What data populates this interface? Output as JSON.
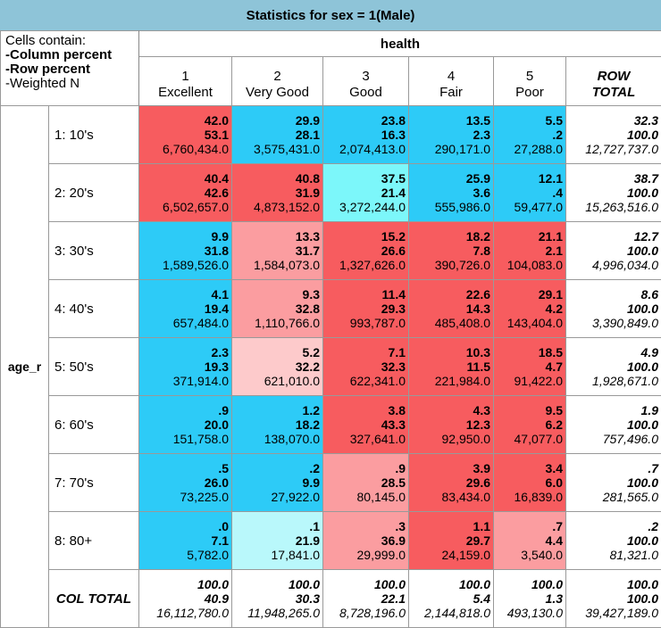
{
  "title": "Statistics for sex = 1(Male)",
  "legend": {
    "header": "Cells contain:",
    "line1": "-Column percent",
    "line2": "-Row percent",
    "line3": "-Weighted N"
  },
  "column_variable": "health",
  "row_variable": "age_r",
  "columns": [
    {
      "code": "1",
      "label": "Excellent"
    },
    {
      "code": "2",
      "label": "Very Good"
    },
    {
      "code": "3",
      "label": "Good"
    },
    {
      "code": "4",
      "label": "Fair"
    },
    {
      "code": "5",
      "label": "Poor"
    }
  ],
  "row_total_label": [
    "ROW",
    "TOTAL"
  ],
  "col_total_label": "COL TOTAL",
  "colors": {
    "red": "#f75c5f",
    "pink": "#fb9da0",
    "light_pink": "#fdcacb",
    "blue": "#2dcbf7",
    "cyan": "#7cf7fa",
    "light_cyan": "#b9f8fb",
    "header": "#8ec4d8"
  },
  "rows": [
    {
      "label": "1: 10's",
      "cells": [
        {
          "col": "42.0",
          "row": "53.1",
          "n": "6,760,434.0",
          "color": "red"
        },
        {
          "col": "29.9",
          "row": "28.1",
          "n": "3,575,431.0",
          "color": "blue"
        },
        {
          "col": "23.8",
          "row": "16.3",
          "n": "2,074,413.0",
          "color": "blue"
        },
        {
          "col": "13.5",
          "row": "2.3",
          "n": "290,171.0",
          "color": "blue"
        },
        {
          "col": "5.5",
          "row": ".2",
          "n": "27,288.0",
          "color": "blue"
        }
      ],
      "total": {
        "col": "32.3",
        "row": "100.0",
        "n": "12,727,737.0"
      }
    },
    {
      "label": "2: 20's",
      "cells": [
        {
          "col": "40.4",
          "row": "42.6",
          "n": "6,502,657.0",
          "color": "red"
        },
        {
          "col": "40.8",
          "row": "31.9",
          "n": "4,873,152.0",
          "color": "red"
        },
        {
          "col": "37.5",
          "row": "21.4",
          "n": "3,272,244.0",
          "color": "cyan"
        },
        {
          "col": "25.9",
          "row": "3.6",
          "n": "555,986.0",
          "color": "blue"
        },
        {
          "col": "12.1",
          "row": ".4",
          "n": "59,477.0",
          "color": "blue"
        }
      ],
      "total": {
        "col": "38.7",
        "row": "100.0",
        "n": "15,263,516.0"
      }
    },
    {
      "label": "3: 30's",
      "cells": [
        {
          "col": "9.9",
          "row": "31.8",
          "n": "1,589,526.0",
          "color": "blue"
        },
        {
          "col": "13.3",
          "row": "31.7",
          "n": "1,584,073.0",
          "color": "pink"
        },
        {
          "col": "15.2",
          "row": "26.6",
          "n": "1,327,626.0",
          "color": "red"
        },
        {
          "col": "18.2",
          "row": "7.8",
          "n": "390,726.0",
          "color": "red"
        },
        {
          "col": "21.1",
          "row": "2.1",
          "n": "104,083.0",
          "color": "red"
        }
      ],
      "total": {
        "col": "12.7",
        "row": "100.0",
        "n": "4,996,034.0"
      }
    },
    {
      "label": "4: 40's",
      "cells": [
        {
          "col": "4.1",
          "row": "19.4",
          "n": "657,484.0",
          "color": "blue"
        },
        {
          "col": "9.3",
          "row": "32.8",
          "n": "1,110,766.0",
          "color": "pink"
        },
        {
          "col": "11.4",
          "row": "29.3",
          "n": "993,787.0",
          "color": "red"
        },
        {
          "col": "22.6",
          "row": "14.3",
          "n": "485,408.0",
          "color": "red"
        },
        {
          "col": "29.1",
          "row": "4.2",
          "n": "143,404.0",
          "color": "red"
        }
      ],
      "total": {
        "col": "8.6",
        "row": "100.0",
        "n": "3,390,849.0"
      }
    },
    {
      "label": "5: 50's",
      "cells": [
        {
          "col": "2.3",
          "row": "19.3",
          "n": "371,914.0",
          "color": "blue"
        },
        {
          "col": "5.2",
          "row": "32.2",
          "n": "621,010.0",
          "color": "light_pink"
        },
        {
          "col": "7.1",
          "row": "32.3",
          "n": "622,341.0",
          "color": "red"
        },
        {
          "col": "10.3",
          "row": "11.5",
          "n": "221,984.0",
          "color": "red"
        },
        {
          "col": "18.5",
          "row": "4.7",
          "n": "91,422.0",
          "color": "red"
        }
      ],
      "total": {
        "col": "4.9",
        "row": "100.0",
        "n": "1,928,671.0"
      }
    },
    {
      "label": "6: 60's",
      "cells": [
        {
          "col": ".9",
          "row": "20.0",
          "n": "151,758.0",
          "color": "blue"
        },
        {
          "col": "1.2",
          "row": "18.2",
          "n": "138,070.0",
          "color": "blue"
        },
        {
          "col": "3.8",
          "row": "43.3",
          "n": "327,641.0",
          "color": "red"
        },
        {
          "col": "4.3",
          "row": "12.3",
          "n": "92,950.0",
          "color": "red"
        },
        {
          "col": "9.5",
          "row": "6.2",
          "n": "47,077.0",
          "color": "red"
        }
      ],
      "total": {
        "col": "1.9",
        "row": "100.0",
        "n": "757,496.0"
      }
    },
    {
      "label": "7: 70's",
      "cells": [
        {
          "col": ".5",
          "row": "26.0",
          "n": "73,225.0",
          "color": "blue"
        },
        {
          "col": ".2",
          "row": "9.9",
          "n": "27,922.0",
          "color": "blue"
        },
        {
          "col": ".9",
          "row": "28.5",
          "n": "80,145.0",
          "color": "pink"
        },
        {
          "col": "3.9",
          "row": "29.6",
          "n": "83,434.0",
          "color": "red"
        },
        {
          "col": "3.4",
          "row": "6.0",
          "n": "16,839.0",
          "color": "red"
        }
      ],
      "total": {
        "col": ".7",
        "row": "100.0",
        "n": "281,565.0"
      }
    },
    {
      "label": "8: 80+",
      "cells": [
        {
          "col": ".0",
          "row": "7.1",
          "n": "5,782.0",
          "color": "blue"
        },
        {
          "col": ".1",
          "row": "21.9",
          "n": "17,841.0",
          "color": "light_cyan"
        },
        {
          "col": ".3",
          "row": "36.9",
          "n": "29,999.0",
          "color": "pink"
        },
        {
          "col": "1.1",
          "row": "29.7",
          "n": "24,159.0",
          "color": "red"
        },
        {
          "col": ".7",
          "row": "4.4",
          "n": "3,540.0",
          "color": "pink"
        }
      ],
      "total": {
        "col": ".2",
        "row": "100.0",
        "n": "81,321.0"
      }
    }
  ],
  "col_totals": [
    {
      "col": "100.0",
      "row": "40.9",
      "n": "16,112,780.0"
    },
    {
      "col": "100.0",
      "row": "30.3",
      "n": "11,948,265.0"
    },
    {
      "col": "100.0",
      "row": "22.1",
      "n": "8,728,196.0"
    },
    {
      "col": "100.0",
      "row": "5.4",
      "n": "2,144,818.0"
    },
    {
      "col": "100.0",
      "row": "1.3",
      "n": "493,130.0"
    }
  ],
  "grand_total": {
    "col": "100.0",
    "row": "100.0",
    "n": "39,427,189.0"
  }
}
